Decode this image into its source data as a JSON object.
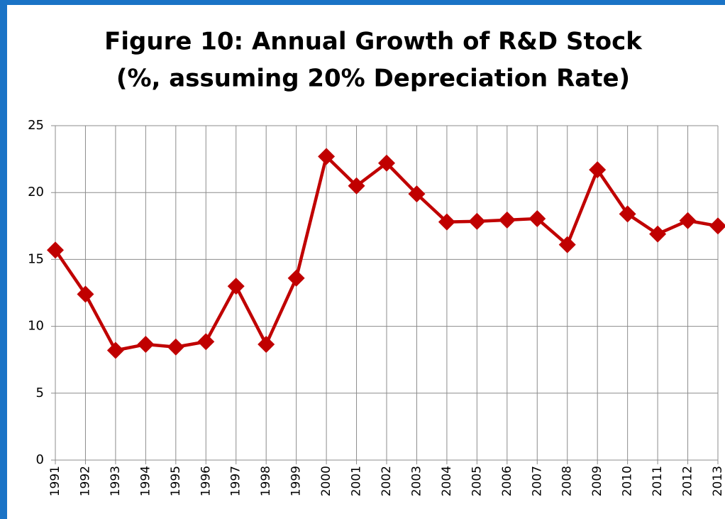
{
  "chart_data": {
    "type": "line",
    "title": [
      "Figure 10: Annual Growth of R&D Stock",
      "(%, assuming 20% Depreciation Rate)"
    ],
    "categories": [
      "1991",
      "1992",
      "1993",
      "1994",
      "1995",
      "1996",
      "1997",
      "1998",
      "1999",
      "2000",
      "2001",
      "2002",
      "2003",
      "2004",
      "2005",
      "2006",
      "2007",
      "2008",
      "2009",
      "2010",
      "2011",
      "2012",
      "2013"
    ],
    "values": [
      15.7,
      12.4,
      8.2,
      8.65,
      8.45,
      8.85,
      13.0,
      8.65,
      13.6,
      22.7,
      20.5,
      22.2,
      19.9,
      17.8,
      17.85,
      17.95,
      18.05,
      16.1,
      21.7,
      18.4,
      16.9,
      17.9,
      17.5
    ],
    "color": "#c00000",
    "ylim": [
      0,
      25
    ],
    "yticks": [
      0,
      5,
      10,
      15,
      20,
      25
    ],
    "grid": true
  }
}
